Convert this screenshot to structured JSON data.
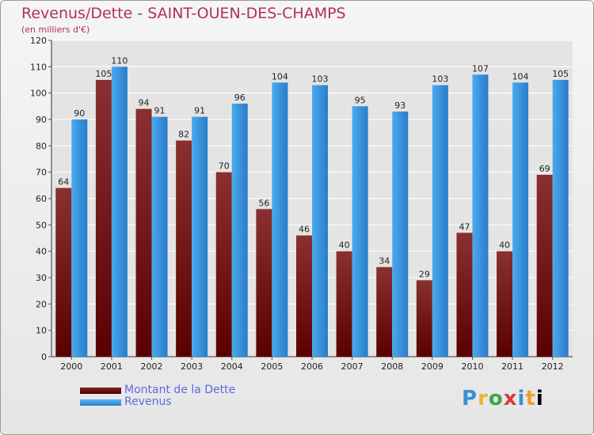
{
  "header": {
    "title": "Revenus/Dette - SAINT-OUEN-DES-CHAMPS",
    "subtitle": "(en milliers d'€)"
  },
  "legend": {
    "items": [
      {
        "label": "Montant de la Dette",
        "color": "#7a1010"
      },
      {
        "label": "Revenus",
        "color": "#3a95e0"
      }
    ]
  },
  "logo": {
    "text": "Proxiti"
  },
  "colors": {
    "dette_dark": "#5a0000",
    "dette_light": "#8a3030",
    "revenus_dark": "#2a7cc8",
    "revenus_light": "#4aaaf0",
    "grid": "#ffffff",
    "axis_text": "#222222"
  },
  "chart_data": {
    "type": "bar",
    "title": "Revenus/Dette - SAINT-OUEN-DES-CHAMPS",
    "ylabel": "(en milliers d'€)",
    "xlabel": "",
    "ylim": [
      0,
      120
    ],
    "yticks": [
      0,
      10,
      20,
      30,
      40,
      50,
      60,
      70,
      80,
      90,
      100,
      110,
      120
    ],
    "grid": true,
    "legend_position": "bottom-left",
    "categories": [
      "2000",
      "2001",
      "2002",
      "2003",
      "2004",
      "2005",
      "2006",
      "2007",
      "2008",
      "2009",
      "2010",
      "2011",
      "2012"
    ],
    "series": [
      {
        "name": "Montant de la Dette",
        "values": [
          64,
          105,
          94,
          82,
          70,
          56,
          46,
          40,
          34,
          29,
          47,
          40,
          69
        ]
      },
      {
        "name": "Revenus",
        "values": [
          90,
          110,
          91,
          91,
          96,
          104,
          103,
          95,
          93,
          103,
          107,
          104,
          105
        ]
      }
    ]
  }
}
